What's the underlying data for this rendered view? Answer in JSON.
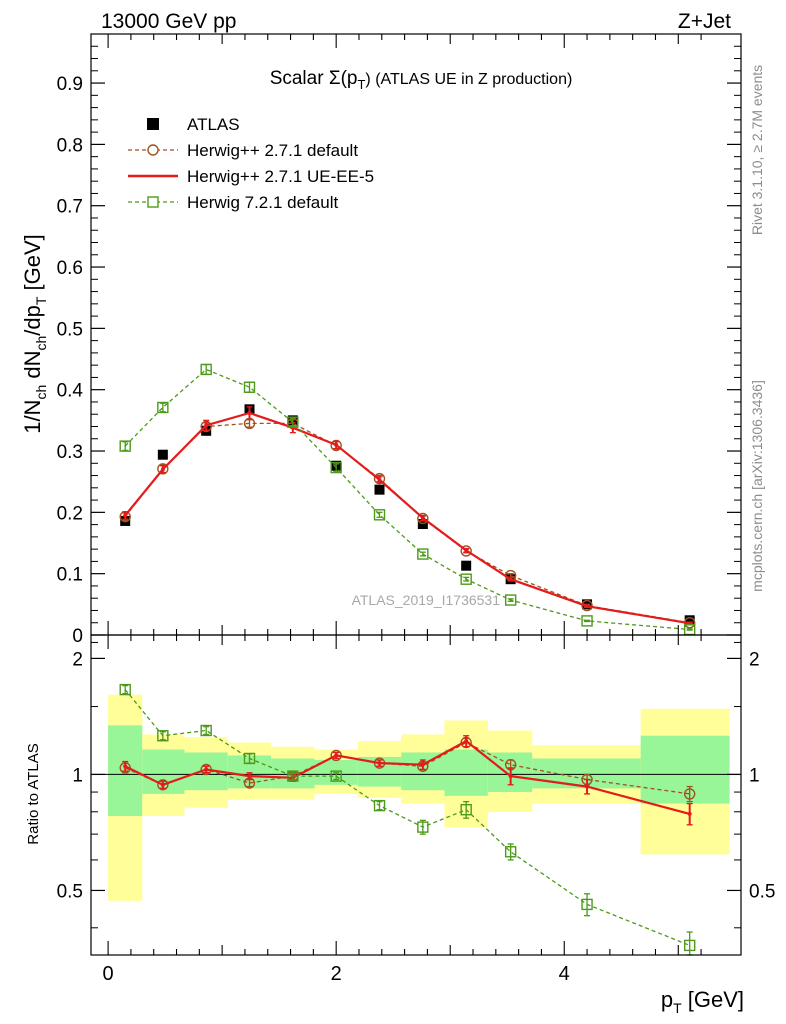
{
  "header": {
    "energy": "13000 GeV pp",
    "process": "Z+Jet"
  },
  "side_labels": {
    "rivet": "Rivet 3.1.10, ≥ 2.7M events",
    "mcplots": "mcplots.cern.ch [arXiv:1306.3436]"
  },
  "analysis_id": "ATLAS_2019_I1736531",
  "chart_data": [
    {
      "type": "line",
      "panel": "main",
      "title": "Scalar Σ(p_T) (ATLAS UE in Z production)",
      "title_parts": {
        "pre": "Scalar Σ(p",
        "sub": "T",
        "post": ") (ATLAS UE in Z production)"
      },
      "ylabel": "1/N_ch dN_ch/dp_T [GeV]",
      "ylabel_parts": {
        "a": "1/N",
        "a_sub": "ch",
        "b": " dN",
        "b_sub": "ch",
        "c": "/dp",
        "c_sub": "T",
        "d": " [GeV]"
      },
      "xlim": [
        -0.15,
        5.55
      ],
      "ylim": [
        0,
        0.98
      ],
      "yticks": [
        0,
        0.1,
        0.2,
        0.3,
        0.4,
        0.5,
        0.6,
        0.7,
        0.8,
        0.9
      ],
      "ytick_labels": [
        "0",
        "0.1",
        "0.2",
        "0.3",
        "0.4",
        "0.5",
        "0.6",
        "0.7",
        "0.8",
        "0.9"
      ],
      "legend_position": "top-left",
      "series": [
        {
          "name": "ATLAS",
          "style": "data",
          "color": "#000000",
          "x": [
            0.15,
            0.48,
            0.86,
            1.24,
            1.62,
            2.0,
            2.38,
            2.76,
            3.14,
            3.53,
            4.2,
            5.1
          ],
          "values": [
            0.186,
            0.294,
            0.333,
            0.368,
            0.35,
            0.276,
            0.237,
            0.181,
            0.113,
            0.091,
            0.05,
            0.024
          ]
        },
        {
          "name": "Herwig++ 2.7.1 default",
          "style": "dashed-circle",
          "color": "#a0521e",
          "x": [
            0.15,
            0.48,
            0.86,
            1.24,
            1.62,
            2.0,
            2.38,
            2.76,
            3.14,
            3.53,
            4.2,
            5.1
          ],
          "values": [
            0.193,
            0.271,
            0.34,
            0.345,
            0.345,
            0.309,
            0.255,
            0.19,
            0.137,
            0.097,
            0.048,
            0.02
          ],
          "errors": [
            0.006,
            0.006,
            0.006,
            0.006,
            0.006,
            0.006,
            0.005,
            0.004,
            0.003,
            0.003,
            0.002,
            0.001
          ]
        },
        {
          "name": "Herwig++ 2.7.1 UE-EE-5",
          "style": "solid",
          "color": "#e41a1c",
          "x": [
            0.15,
            0.48,
            0.86,
            1.24,
            1.62,
            2.0,
            2.38,
            2.76,
            3.14,
            3.53,
            4.2,
            5.1
          ],
          "values": [
            0.195,
            0.27,
            0.342,
            0.362,
            0.338,
            0.31,
            0.253,
            0.191,
            0.138,
            0.091,
            0.047,
            0.019
          ],
          "errors": [
            0.006,
            0.006,
            0.008,
            0.01,
            0.008,
            0.006,
            0.005,
            0.004,
            0.003,
            0.003,
            0.002,
            0.001
          ]
        },
        {
          "name": "Herwig 7.2.1 default",
          "style": "dashed-square",
          "color": "#4d9a1a",
          "x": [
            0.15,
            0.48,
            0.86,
            1.24,
            1.62,
            2.0,
            2.38,
            2.76,
            3.14,
            3.53,
            4.2,
            5.1
          ],
          "values": [
            0.308,
            0.371,
            0.433,
            0.404,
            0.347,
            0.273,
            0.196,
            0.132,
            0.091,
            0.057,
            0.023,
            0.009
          ],
          "errors": [
            0.007,
            0.007,
            0.008,
            0.008,
            0.007,
            0.006,
            0.004,
            0.003,
            0.003,
            0.002,
            0.001,
            0.001
          ]
        }
      ]
    },
    {
      "type": "line",
      "panel": "ratio",
      "ylabel": "Ratio to ATLAS",
      "xlabel": "p_T [GeV]",
      "xlabel_parts": {
        "a": "p",
        "a_sub": "T",
        "b": " [GeV]"
      },
      "xlim": [
        -0.15,
        5.55
      ],
      "ylim": [
        0.34,
        2.3
      ],
      "ylog": true,
      "xticks": [
        0,
        2,
        4
      ],
      "xtick_labels": [
        "0",
        "2",
        "4"
      ],
      "yticks": [
        0.5,
        1,
        2
      ],
      "ytick_labels": [
        "0.5",
        "1",
        "2"
      ],
      "reference_line": 1,
      "bins": {
        "edges": [
          0.0,
          0.3,
          0.67,
          1.05,
          1.43,
          1.81,
          2.19,
          2.57,
          2.95,
          3.33,
          3.72,
          4.67,
          5.45
        ],
        "inner_band": [
          [
            0.78,
            1.34
          ],
          [
            0.89,
            1.16
          ],
          [
            0.91,
            1.14
          ],
          [
            0.92,
            1.12
          ],
          [
            0.92,
            1.1
          ],
          [
            0.94,
            1.09
          ],
          [
            0.93,
            1.11
          ],
          [
            0.91,
            1.14
          ],
          [
            0.88,
            1.16
          ],
          [
            0.9,
            1.14
          ],
          [
            0.92,
            1.1
          ],
          [
            0.84,
            1.26
          ]
        ],
        "outer_band": [
          [
            0.47,
            1.61
          ],
          [
            0.78,
            1.27
          ],
          [
            0.82,
            1.25
          ],
          [
            0.86,
            1.21
          ],
          [
            0.86,
            1.18
          ],
          [
            0.89,
            1.16
          ],
          [
            0.87,
            1.22
          ],
          [
            0.84,
            1.27
          ],
          [
            0.73,
            1.38
          ],
          [
            0.8,
            1.3
          ],
          [
            0.84,
            1.19
          ],
          [
            0.62,
            1.48
          ]
        ],
        "inner_color": "#98f598",
        "outer_color": "#fffe99"
      },
      "series": [
        {
          "name": "Herwig++ 2.7.1 default",
          "style": "dashed-circle",
          "color": "#a0521e",
          "x": [
            0.15,
            0.48,
            0.86,
            1.24,
            1.62,
            2.0,
            2.38,
            2.76,
            3.14,
            3.53,
            4.2,
            5.1
          ],
          "values": [
            1.04,
            0.94,
            1.03,
            0.95,
            0.99,
            1.12,
            1.07,
            1.05,
            1.21,
            1.06,
            0.97,
            0.89
          ],
          "errors": [
            0.03,
            0.02,
            0.02,
            0.02,
            0.02,
            0.02,
            0.02,
            0.02,
            0.03,
            0.03,
            0.03,
            0.04
          ]
        },
        {
          "name": "Herwig++ 2.7.1 UE-EE-5",
          "style": "solid",
          "color": "#e41a1c",
          "x": [
            0.15,
            0.48,
            0.86,
            1.24,
            1.62,
            2.0,
            2.38,
            2.76,
            3.14,
            3.53,
            4.2,
            5.1
          ],
          "values": [
            1.05,
            0.94,
            1.03,
            0.99,
            0.98,
            1.12,
            1.07,
            1.06,
            1.22,
            0.99,
            0.93,
            0.79
          ],
          "errors": [
            0.03,
            0.02,
            0.02,
            0.02,
            0.02,
            0.02,
            0.02,
            0.03,
            0.04,
            0.05,
            0.04,
            0.05
          ]
        },
        {
          "name": "Herwig 7.2.1 default",
          "style": "dashed-square",
          "color": "#4d9a1a",
          "x": [
            0.15,
            0.48,
            0.86,
            1.24,
            1.62,
            2.0,
            2.38,
            2.76,
            3.14,
            3.53,
            4.2,
            5.1
          ],
          "values": [
            1.66,
            1.26,
            1.3,
            1.1,
            0.99,
            0.99,
            0.83,
            0.73,
            0.81,
            0.63,
            0.46,
            0.36
          ],
          "errors": [
            0.04,
            0.03,
            0.03,
            0.03,
            0.02,
            0.02,
            0.02,
            0.03,
            0.04,
            0.03,
            0.03,
            0.03
          ]
        }
      ]
    }
  ]
}
